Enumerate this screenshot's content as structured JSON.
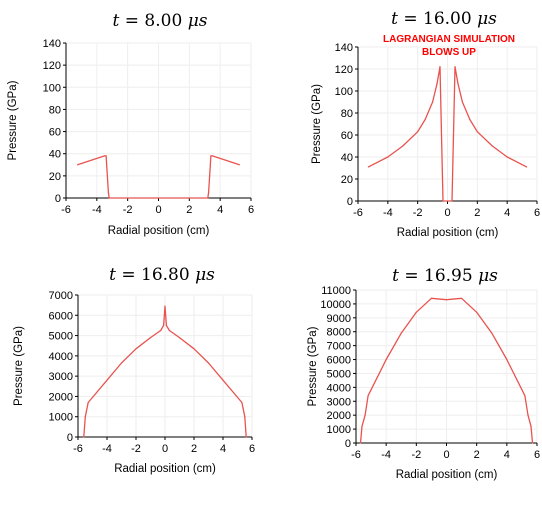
{
  "chart_data": [
    {
      "type": "line",
      "title": {
        "lhs": "t",
        "value": "8.00",
        "unit": "μs"
      },
      "xlabel": "Radial position (cm)",
      "ylabel": "Pressure (GPa)",
      "xlim": [
        -6,
        6
      ],
      "ylim": [
        0,
        140
      ],
      "xticks": [
        "-6",
        "-4",
        "-2",
        "0",
        "2",
        "4",
        "6"
      ],
      "yticks": [
        "0",
        "20",
        "40",
        "60",
        "80",
        "100",
        "120",
        "140"
      ],
      "grid": true,
      "color": "#e8534f",
      "series": [
        {
          "x": [
            -5.25,
            -3.5,
            -3.4,
            -3.25,
            -3.2,
            3.2,
            3.25,
            3.4,
            3.5,
            5.25
          ],
          "y": [
            30,
            38,
            38,
            5,
            0,
            0,
            5,
            38,
            38,
            30
          ]
        }
      ]
    },
    {
      "type": "line",
      "title": {
        "lhs": "t",
        "value": "16.00",
        "unit": "μs"
      },
      "annotation": [
        "LAGRANGIAN SIMULATION",
        "BLOWS UP"
      ],
      "xlabel": "Radial position (cm)",
      "ylabel": "Pressure (GPa)",
      "xlim": [
        -6,
        6
      ],
      "ylim": [
        0,
        140
      ],
      "xticks": [
        "-6",
        "-4",
        "-2",
        "0",
        "2",
        "4",
        "6"
      ],
      "yticks": [
        "0",
        "20",
        "40",
        "60",
        "80",
        "100",
        "120",
        "140"
      ],
      "grid": true,
      "color": "#e8534f",
      "series": [
        {
          "x": [
            -5.3,
            -4,
            -3,
            -2,
            -1.5,
            -1.0,
            -0.7,
            -0.5,
            -0.4,
            -0.3,
            0.3,
            0.4,
            0.5,
            0.7,
            1.0,
            1.5,
            2,
            3,
            4,
            5.3
          ],
          "y": [
            31,
            40,
            50,
            63,
            74,
            90,
            107,
            122,
            60,
            0,
            0,
            60,
            122,
            107,
            90,
            74,
            63,
            50,
            40,
            31
          ]
        }
      ]
    },
    {
      "type": "line",
      "title": {
        "lhs": "t",
        "value": "16.80",
        "unit": "μs"
      },
      "xlabel": "Radial position (cm)",
      "ylabel": "Pressure (GPa)",
      "xlim": [
        -6,
        6
      ],
      "ylim": [
        0,
        7000
      ],
      "xticks": [
        "-6",
        "-4",
        "-2",
        "0",
        "2",
        "4",
        "6"
      ],
      "yticks": [
        "0",
        "1000",
        "2000",
        "3000",
        "4000",
        "5000",
        "6000",
        "7000"
      ],
      "grid": true,
      "color": "#e8534f",
      "series": [
        {
          "x": [
            -5.6,
            -5.5,
            -5.3,
            -4,
            -3,
            -2,
            -1,
            -0.3,
            -0.1,
            0,
            0.1,
            0.3,
            1,
            2,
            3,
            4,
            5.3,
            5.5,
            5.6
          ],
          "y": [
            0,
            1000,
            1700,
            2800,
            3650,
            4350,
            4900,
            5250,
            5500,
            6450,
            5500,
            5250,
            4900,
            4350,
            3650,
            2800,
            1700,
            1000,
            0
          ]
        }
      ]
    },
    {
      "type": "line",
      "title": {
        "lhs": "t",
        "value": "16.95",
        "unit": "μs"
      },
      "xlabel": "Radial position (cm)",
      "ylabel": "Pressure (GPa)",
      "xlim": [
        -6,
        6
      ],
      "ylim": [
        0,
        11000
      ],
      "xticks": [
        "-6",
        "-4",
        "-2",
        "0",
        "2",
        "4",
        "6"
      ],
      "yticks": [
        "0",
        "1000",
        "2000",
        "3000",
        "4000",
        "5000",
        "6000",
        "7000",
        "8000",
        "9000",
        "10000",
        "11000"
      ],
      "grid": true,
      "color": "#e8534f",
      "series": [
        {
          "x": [
            -5.7,
            -5.6,
            -5.4,
            -5.2,
            -4,
            -3,
            -2,
            -1,
            0,
            1,
            2,
            3,
            4,
            5.2,
            5.4,
            5.6,
            5.7
          ],
          "y": [
            0,
            1200,
            2000,
            3400,
            6000,
            7900,
            9400,
            10400,
            10300,
            10400,
            9400,
            7900,
            6000,
            3400,
            2000,
            1200,
            0
          ]
        }
      ]
    }
  ]
}
